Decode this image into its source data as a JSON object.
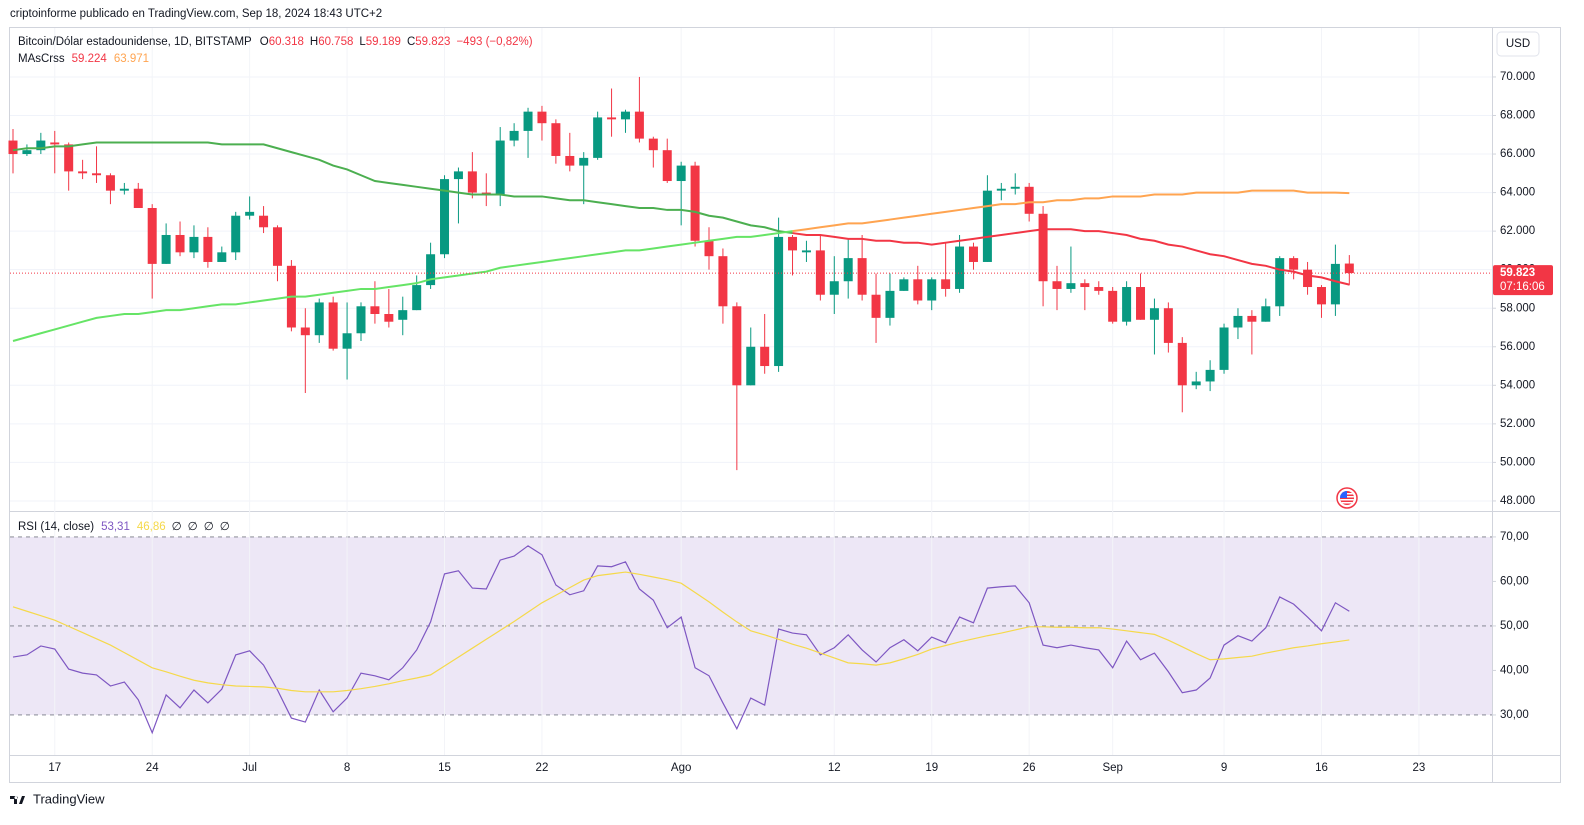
{
  "header": {
    "title": "criptoinforme publicado en TradingView.com, Sep 18, 2024 18:43 UTC+2",
    "currency_button": "USD",
    "footer": "TradingView"
  },
  "chart_data": [
    {
      "type": "candlestick",
      "legend": {
        "symbol": "Bitcoin/Dólar estadounidense, 1D, BITSTAMP",
        "ohlc": [
          {
            "label": "O",
            "value": "60.318"
          },
          {
            "label": "H",
            "value": "60.758"
          },
          {
            "label": "L",
            "value": "59.189"
          },
          {
            "label": "C",
            "value": "59.823"
          }
        ],
        "change": "−493 (−0,82%)"
      },
      "open": [
        66700,
        66000,
        66200,
        66600,
        66500,
        65100,
        65000,
        64900,
        64100,
        64200,
        63200,
        60300,
        61800,
        60900,
        61700,
        60400,
        60900,
        62800,
        62800,
        62200,
        60200,
        57000,
        56600,
        58300,
        55900,
        56700,
        58100,
        57700,
        57400,
        57900,
        59200,
        60800,
        64700,
        65100,
        64000,
        63900,
        66700,
        67200,
        68200,
        67600,
        65900,
        65400,
        65800,
        67900,
        67800,
        68200,
        66800,
        66200,
        64600,
        65400,
        61500,
        60700,
        58100,
        54000,
        56000,
        55000,
        61700,
        60900,
        61000,
        58700,
        59400,
        60600,
        58700,
        57500,
        58900,
        59500,
        58400,
        59500,
        59000,
        61200,
        60400,
        64100,
        64200,
        64300,
        62900,
        59400,
        59000,
        59300,
        59100,
        58900,
        57300,
        59100,
        57400,
        58000,
        56200,
        54000,
        54200,
        54800,
        57000,
        57600,
        57300,
        58100,
        60600,
        60000,
        59100,
        58200,
        60318,
        null,
        null,
        null,
        null,
        null
      ],
      "high": [
        67300,
        66500,
        67100,
        67200,
        66600,
        65700,
        66400,
        65000,
        64500,
        64500,
        63400,
        62400,
        62500,
        62300,
        62200,
        61200,
        63000,
        63800,
        63300,
        62300,
        60500,
        58000,
        58500,
        58600,
        58300,
        58300,
        59400,
        59000,
        58600,
        59700,
        61400,
        64900,
        65300,
        66100,
        65000,
        67400,
        67600,
        68400,
        68500,
        67800,
        67100,
        66100,
        68200,
        69400,
        68300,
        70000,
        66900,
        66800,
        65600,
        65600,
        62200,
        61100,
        58300,
        57000,
        57700,
        62700,
        61800,
        61500,
        61800,
        60700,
        61600,
        61800,
        59800,
        59800,
        59600,
        60200,
        59600,
        61400,
        61800,
        61400,
        64900,
        64500,
        65000,
        64500,
        63300,
        60200,
        61200,
        59500,
        59400,
        59100,
        59400,
        59800,
        58500,
        58300,
        56500,
        54700,
        55300,
        57200,
        58000,
        57900,
        58500,
        60700,
        60700,
        60400,
        59200,
        61300,
        60758,
        null,
        null,
        null,
        null,
        null
      ],
      "low": [
        65000,
        65900,
        66000,
        65000,
        64100,
        64700,
        64500,
        63400,
        63900,
        63200,
        58500,
        60300,
        60700,
        60600,
        60100,
        60400,
        60500,
        62600,
        61900,
        59400,
        56800,
        53600,
        56200,
        55800,
        54300,
        56300,
        57200,
        57000,
        56600,
        57900,
        59000,
        60600,
        62400,
        63700,
        63300,
        63300,
        66400,
        65800,
        66700,
        65500,
        65100,
        63400,
        65700,
        66900,
        67100,
        66600,
        65300,
        64500,
        62300,
        61200,
        60000,
        57200,
        49600,
        54000,
        54600,
        54700,
        59700,
        60400,
        58400,
        57700,
        58500,
        58400,
        56200,
        57100,
        58900,
        58200,
        57900,
        58600,
        58800,
        60000,
        60400,
        63600,
        63900,
        62500,
        58100,
        57900,
        58800,
        57900,
        58700,
        57200,
        57100,
        57400,
        55600,
        55700,
        52600,
        53800,
        53700,
        54600,
        56400,
        55600,
        57300,
        57600,
        59500,
        58700,
        57500,
        57600,
        59189,
        null,
        null,
        null,
        null,
        null
      ],
      "close": [
        66000,
        66200,
        66700,
        66500,
        65100,
        65000,
        64900,
        64100,
        64200,
        63200,
        60300,
        61800,
        60900,
        61700,
        60400,
        60900,
        62800,
        63000,
        62200,
        60200,
        57000,
        56600,
        58300,
        55900,
        56700,
        58100,
        57700,
        57300,
        57900,
        59200,
        60800,
        64700,
        65100,
        64000,
        63900,
        66700,
        67200,
        68200,
        67600,
        65900,
        65400,
        65800,
        67900,
        67800,
        68200,
        66800,
        66200,
        64600,
        65400,
        61500,
        60700,
        58100,
        54000,
        56000,
        55000,
        61700,
        61000,
        61000,
        58700,
        59400,
        60600,
        58700,
        57500,
        58900,
        59500,
        58400,
        59500,
        59000,
        61200,
        60400,
        64100,
        64200,
        64300,
        62900,
        59400,
        59000,
        59300,
        59100,
        58900,
        57300,
        59100,
        57400,
        58000,
        56200,
        54000,
        54200,
        54800,
        57000,
        57600,
        57300,
        58100,
        60600,
        60000,
        59100,
        58200,
        60300,
        59823,
        null,
        null,
        null,
        null,
        null
      ],
      "up_color": "#089981",
      "down_color": "#f23645",
      "indicator": {
        "name": "MAsCrss",
        "series": [
          {
            "legend_value": "59.224",
            "colors": [
              "#4caf50",
              "#f23645"
            ],
            "values": [
              66200,
              66300,
              66300,
              66400,
              66400,
              66500,
              66600,
              66600,
              66600,
              66600,
              66600,
              66600,
              66600,
              66600,
              66600,
              66500,
              66500,
              66500,
              66500,
              66300,
              66100,
              65900,
              65700,
              65400,
              65200,
              64900,
              64600,
              64500,
              64400,
              64300,
              64200,
              64100,
              64000,
              63900,
              63900,
              63900,
              63800,
              63800,
              63800,
              63700,
              63600,
              63600,
              63500,
              63400,
              63300,
              63200,
              63200,
              63100,
              63100,
              63000,
              62800,
              62700,
              62500,
              62300,
              62200,
              62000,
              61900,
              61800,
              61800,
              61700,
              61600,
              61600,
              61500,
              61500,
              61400,
              61400,
              61300,
              61400,
              61500,
              61600,
              61700,
              61800,
              61900,
              62000,
              62100,
              62100,
              62100,
              62000,
              62000,
              61900,
              61800,
              61600,
              61500,
              61300,
              61200,
              61000,
              60800,
              60700,
              60500,
              60300,
              60200,
              60000,
              59900,
              59700,
              59600,
              59400,
              59224,
              null,
              null,
              null,
              null,
              null
            ]
          },
          {
            "legend_value": "63.971",
            "colors": [
              "#66e466",
              "#ffa450"
            ],
            "values": [
              56300,
              56500,
              56700,
              56900,
              57100,
              57300,
              57500,
              57600,
              57700,
              57700,
              57800,
              57900,
              57900,
              58000,
              58100,
              58200,
              58200,
              58300,
              58400,
              58500,
              58600,
              58600,
              58700,
              58800,
              58900,
              59000,
              59000,
              59100,
              59200,
              59300,
              59500,
              59600,
              59700,
              59800,
              59900,
              60100,
              60200,
              60300,
              60400,
              60500,
              60600,
              60700,
              60800,
              60900,
              61000,
              61000,
              61100,
              61200,
              61300,
              61400,
              61500,
              61600,
              61700,
              61700,
              61800,
              61900,
              62000,
              62100,
              62200,
              62300,
              62400,
              62400,
              62500,
              62600,
              62700,
              62800,
              62900,
              63000,
              63100,
              63200,
              63300,
              63400,
              63400,
              63500,
              63500,
              63600,
              63600,
              63700,
              63700,
              63800,
              63800,
              63800,
              63900,
              63900,
              63900,
              64000,
              64000,
              64000,
              64000,
              64100,
              64100,
              64100,
              64100,
              64000,
              64000,
              64000,
              63971,
              null,
              null,
              null,
              null,
              null
            ]
          }
        ]
      },
      "last_price": {
        "label": "59.823",
        "countdown": "07:16:06",
        "color": "#f23645"
      },
      "ylim": [
        47530,
        72540
      ],
      "yticks": [
        {
          "value": 48000,
          "label": "48.000"
        },
        {
          "value": 50000,
          "label": "50.000"
        },
        {
          "value": 52000,
          "label": "52.000"
        },
        {
          "value": 54000,
          "label": "54.000"
        },
        {
          "value": 56000,
          "label": "56.000"
        },
        {
          "value": 58000,
          "label": "58.000"
        },
        {
          "value": 60000,
          "label": "60.000"
        },
        {
          "value": 62000,
          "label": "62.000"
        },
        {
          "value": 64000,
          "label": "64.000"
        },
        {
          "value": 66000,
          "label": "66.000"
        },
        {
          "value": 68000,
          "label": "68.000"
        },
        {
          "value": 70000,
          "label": "70.000"
        }
      ],
      "grid": true
    },
    {
      "type": "line",
      "legend": {
        "name": "RSI (14, close)",
        "values": [
          "53,31",
          "46,86"
        ],
        "empty": [
          "∅",
          "∅",
          "∅",
          "∅"
        ]
      },
      "categories": [
        null,
        null,
        null,
        "17",
        null,
        null,
        null,
        null,
        null,
        null,
        "24",
        null,
        null,
        null,
        null,
        null,
        null,
        "Jul",
        null,
        null,
        null,
        null,
        null,
        null,
        "8",
        null,
        null,
        null,
        null,
        null,
        null,
        "15",
        null,
        null,
        null,
        null,
        null,
        null,
        "22",
        null,
        null,
        null,
        null,
        null,
        null,
        null,
        null,
        null,
        "Ago",
        null,
        null,
        null,
        null,
        null,
        null,
        null,
        null,
        null,
        null,
        "12",
        null,
        null,
        null,
        null,
        null,
        null,
        "19",
        null,
        null,
        null,
        null,
        null,
        null,
        "26",
        null,
        null,
        null,
        null,
        null,
        "Sep",
        null,
        null,
        null,
        null,
        null,
        null,
        null,
        "9",
        null,
        null,
        null,
        null,
        null,
        null,
        "16",
        null,
        null,
        null,
        null,
        null,
        null,
        "23"
      ],
      "series": [
        {
          "color": "#7e57c2",
          "values": [
            43,
            43.5,
            45.5,
            44.8,
            40.3,
            39.4,
            39,
            36.5,
            37.4,
            33.4,
            26,
            34.5,
            31.6,
            35.6,
            32.7,
            35.8,
            43.5,
            44.4,
            41.2,
            35.6,
            29.3,
            28.4,
            35.6,
            30.7,
            33.8,
            39.4,
            38.8,
            37.9,
            40.6,
            44.6,
            50.9,
            61.7,
            62.4,
            58.5,
            58.3,
            64.8,
            65.7,
            68,
            66,
            59.2,
            57,
            57.9,
            63.5,
            63.3,
            64.4,
            58.3,
            55.8,
            49.6,
            52,
            40.6,
            38.8,
            32.7,
            26.9,
            33.8,
            32.2,
            49.3,
            48.4,
            48,
            43.5,
            45.1,
            48,
            44.6,
            41.9,
            45.1,
            46.9,
            44.4,
            47.5,
            46.2,
            52,
            50.7,
            58.5,
            58.8,
            59,
            55.2,
            45.7,
            45.1,
            45.7,
            45.1,
            44.6,
            40.6,
            46.6,
            42.4,
            43.9,
            39.7,
            35,
            35.6,
            38.3,
            45.7,
            47.8,
            46.6,
            49.6,
            56.5,
            54.9,
            52,
            48.9,
            55.2,
            53.31,
            null,
            null,
            null,
            null,
            null
          ]
        },
        {
          "color": "#f5d94a",
          "values": [
            54.3,
            53.3,
            52.3,
            51.3,
            49.9,
            48.5,
            47.1,
            45.7,
            44,
            42.3,
            40.6,
            39.7,
            38.7,
            37.8,
            37.2,
            36.8,
            36.5,
            36.4,
            36.3,
            36,
            35.5,
            35.2,
            35.2,
            35.2,
            35.5,
            35.9,
            36.4,
            37,
            37.7,
            38.3,
            39,
            41,
            43,
            45,
            47,
            49,
            51,
            53.1,
            55.2,
            56.9,
            58.6,
            60.3,
            61.3,
            61.7,
            62.1,
            61.6,
            61,
            60.4,
            59.6,
            57.5,
            55.4,
            53.1,
            50.9,
            48.9,
            48,
            47,
            45.9,
            45,
            43.9,
            42.8,
            41.7,
            41.5,
            41.2,
            41.7,
            42.6,
            43.6,
            44.8,
            45.6,
            46.4,
            47.1,
            47.8,
            48.4,
            49.1,
            49.8,
            49.8,
            49.7,
            49.7,
            49.6,
            49.6,
            49.3,
            48.9,
            48.5,
            48.1,
            46.8,
            45.3,
            43.8,
            42.4,
            42.6,
            42.9,
            43.2,
            43.9,
            44.5,
            45.1,
            45.5,
            46,
            46.4,
            46.86,
            null,
            null,
            null,
            null,
            null
          ]
        }
      ],
      "band": [
        30,
        70
      ],
      "band_color": "#ede7f6",
      "levels": [
        70,
        50,
        30
      ],
      "ylim": [
        21,
        75.6
      ],
      "yticks": [
        {
          "value": 30,
          "label": "30,00"
        },
        {
          "value": 40,
          "label": "40,00"
        },
        {
          "value": 50,
          "label": "50,00"
        },
        {
          "value": 60,
          "label": "60,00"
        },
        {
          "value": 70,
          "label": "70,00"
        }
      ]
    }
  ]
}
